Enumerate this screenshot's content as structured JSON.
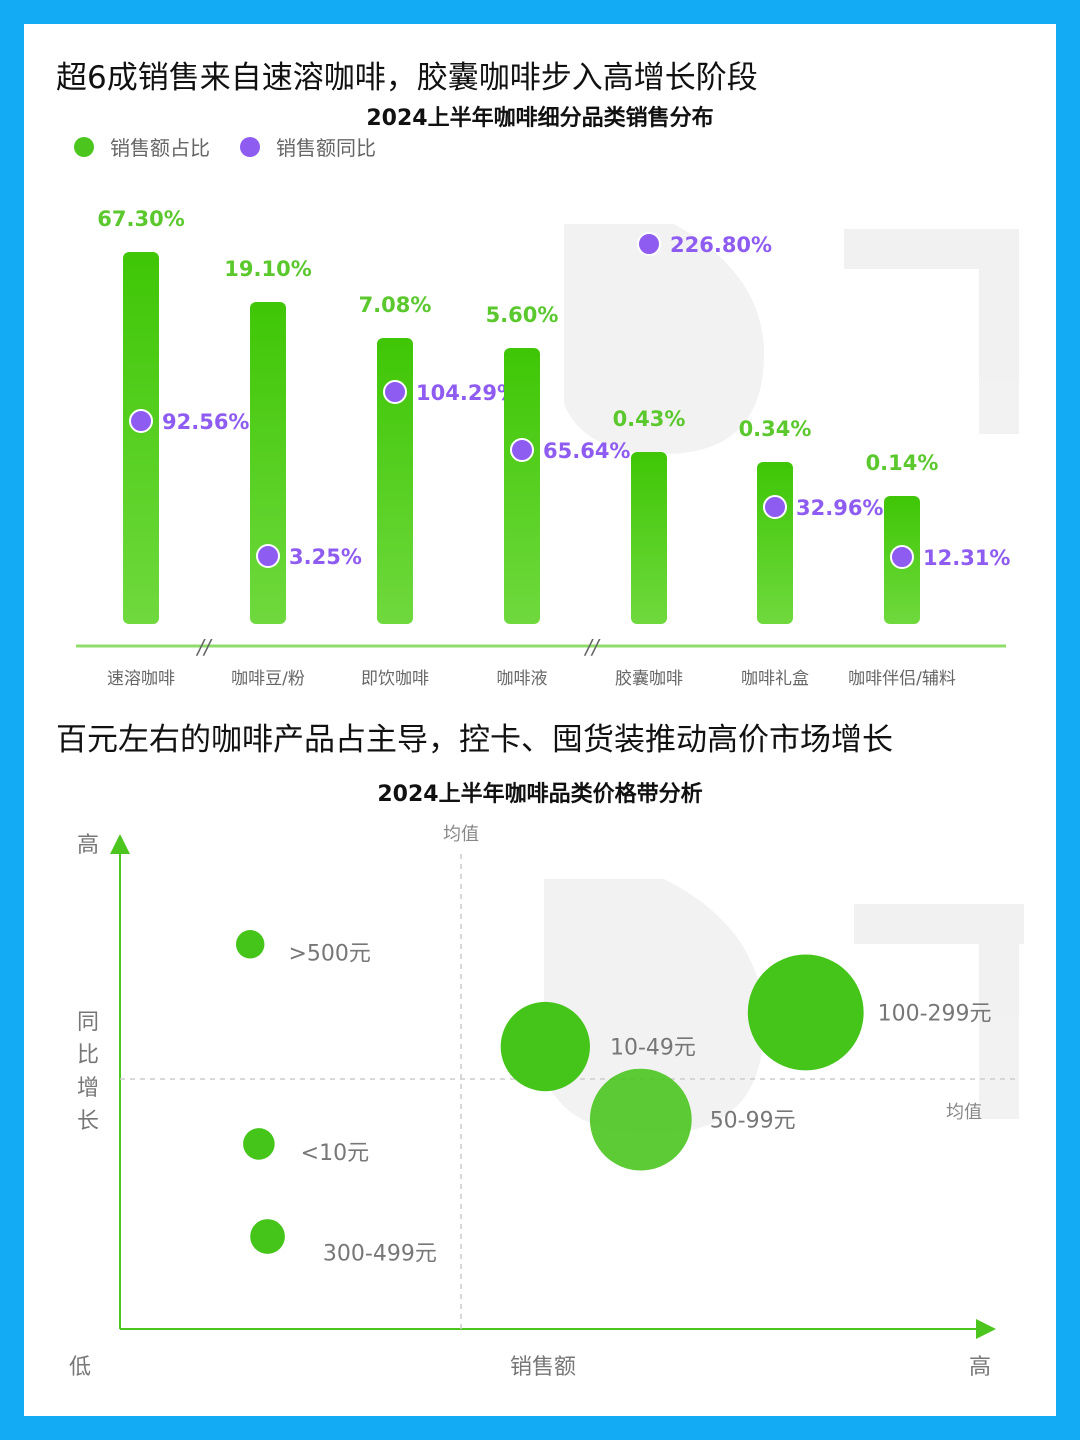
{
  "section1": {
    "title": "超6成销售来自速溶咖啡，胶囊咖啡步入高增长阶段"
  },
  "section2": {
    "title": "百元左右的咖啡产品占主导，控卡、囤货装推动高价市场增长"
  },
  "colors": {
    "background": "#12abf4",
    "green": "#4cc61e",
    "purple": "#8e5cf0",
    "axis": "#6fd44a"
  },
  "chart_data": [
    {
      "type": "bar",
      "title": "2024上半年咖啡细分品类销售分布",
      "legend": [
        "销售额占比",
        "销售额同比"
      ],
      "legend_position": "top-left",
      "axis_break_marks": "//",
      "categories": [
        "速溶咖啡",
        "咖啡豆/粉",
        "即饮咖啡",
        "咖啡液",
        "胶囊咖啡",
        "咖啡礼盒",
        "咖啡伴侣/辅料"
      ],
      "series": [
        {
          "name": "销售额占比",
          "values": [
            67.3,
            19.1,
            7.08,
            5.6,
            0.43,
            0.34,
            0.14
          ],
          "labels": [
            "67.30%",
            "19.10%",
            "7.08%",
            "5.60%",
            "0.43%",
            "0.34%",
            "0.14%"
          ]
        },
        {
          "name": "销售额同比",
          "values": [
            92.56,
            3.25,
            104.29,
            65.64,
            226.8,
            32.96,
            12.31
          ],
          "labels": [
            "92.56%",
            "3.25%",
            "104.29%",
            "65.64%",
            "226.80%",
            "32.96%",
            "12.31%"
          ]
        }
      ]
    },
    {
      "type": "scatter",
      "title": "2024上半年咖啡品类价格带分析",
      "xlabel": "销售额",
      "ylabel": "同比增长",
      "x_low": "低",
      "x_high": "高",
      "y_high": "高",
      "mean_label": "均值",
      "points": [
        {
          "label": ">500元",
          "x": 0.15,
          "y": 0.79,
          "size": 0.08
        },
        {
          "label": "10-49元",
          "x": 0.49,
          "y": 0.58,
          "size": 0.47
        },
        {
          "label": "100-299元",
          "x": 0.79,
          "y": 0.65,
          "size": 0.64
        },
        {
          "label": "50-99元",
          "x": 0.6,
          "y": 0.43,
          "size": 0.55
        },
        {
          "label": "<10元",
          "x": 0.16,
          "y": 0.38,
          "size": 0.1
        },
        {
          "label": "300-499元",
          "x": 0.17,
          "y": 0.19,
          "size": 0.12
        }
      ]
    }
  ]
}
